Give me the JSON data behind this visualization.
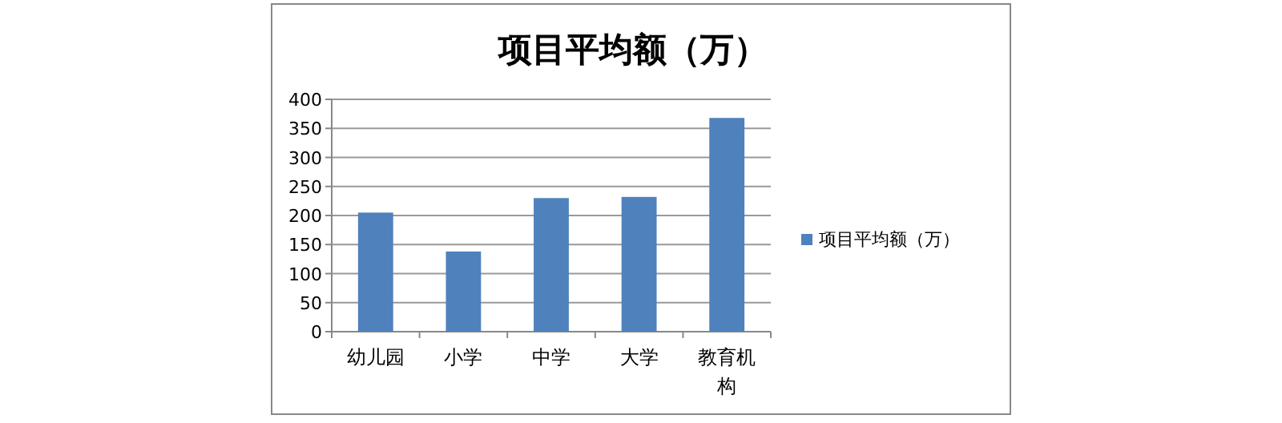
{
  "chart_data": {
    "type": "bar",
    "title": "项目平均额（万）",
    "categories": [
      "幼儿园",
      "小学",
      "中学",
      "大学",
      "教育机构"
    ],
    "series": [
      {
        "name": "项目平均额（万）",
        "color": "#4f81bd",
        "values": [
          205,
          138,
          230,
          232,
          368
        ]
      }
    ],
    "ylim": [
      0,
      400
    ],
    "yticks": [
      0,
      50,
      100,
      150,
      200,
      250,
      300,
      350,
      400
    ],
    "grid": "y",
    "legend": "right"
  }
}
